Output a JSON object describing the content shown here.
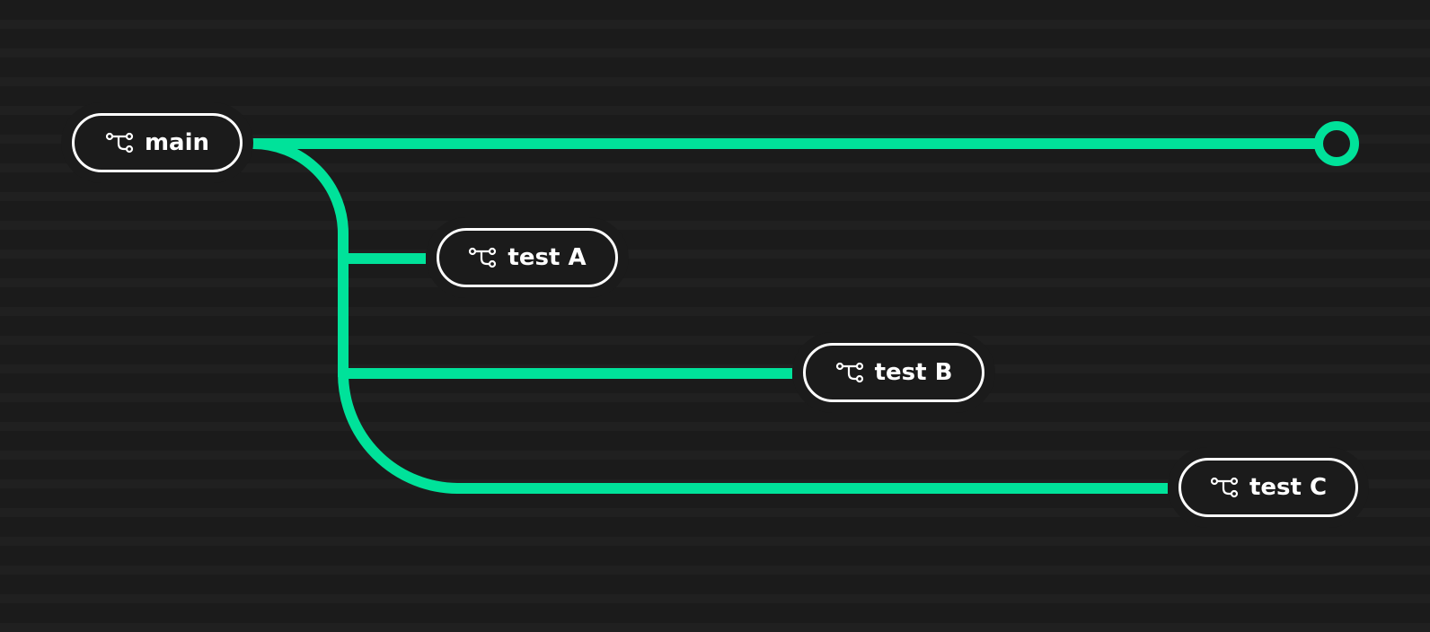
{
  "colors": {
    "background": "#1b1b1b",
    "stripe": "#202020",
    "line": "#00e29a",
    "pill_border": "#ffffff",
    "text": "#ffffff"
  },
  "branches": {
    "main": {
      "label": "main",
      "icon": "git-branch-icon"
    },
    "test_a": {
      "label": "test A",
      "icon": "git-branch-icon"
    },
    "test_b": {
      "label": "test B",
      "icon": "git-branch-icon"
    },
    "test_c": {
      "label": "test C",
      "icon": "git-branch-icon"
    }
  },
  "endpoint": {
    "icon": "commit-circle-icon"
  }
}
